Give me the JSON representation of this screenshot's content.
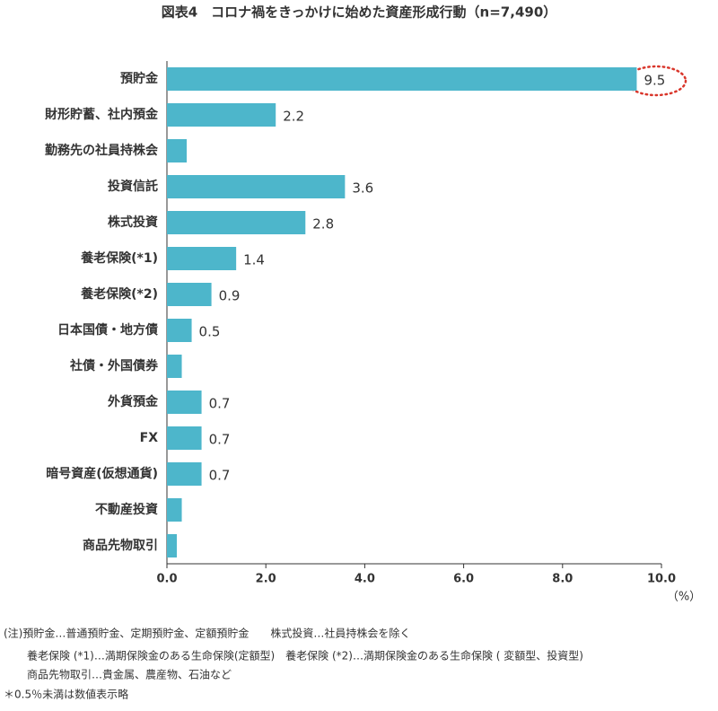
{
  "chart_data": {
    "type": "hbar",
    "title": "図表4　コロナ禍をきっかけに始めた資産形成行動（n=7,490）",
    "categories": [
      "預貯金",
      "財形貯蓄、社内預金",
      "勤務先の社員持株会",
      "投資信託",
      "株式投資",
      "養老保険(*1)",
      "養老保険(*2)",
      "日本国債・地方債",
      "社債・外国債券",
      "外貨預金",
      "FX",
      "暗号資産(仮想通貨)",
      "不動産投資",
      "商品先物取引"
    ],
    "values": [
      9.5,
      2.2,
      0.4,
      3.6,
      2.8,
      1.4,
      0.9,
      0.5,
      0.3,
      0.7,
      0.7,
      0.7,
      0.3,
      0.2
    ],
    "value_labels": [
      "9.5",
      "2.2",
      null,
      "3.6",
      "2.8",
      "1.4",
      "0.9",
      "0.5",
      null,
      "0.7",
      "0.7",
      "0.7",
      null,
      null
    ],
    "color": "#4db6cb",
    "xlim": [
      0,
      10
    ],
    "xticks": [
      {
        "value": 0,
        "label": "0.0"
      },
      {
        "value": 2,
        "label": "2.0"
      },
      {
        "value": 4,
        "label": "4.0"
      },
      {
        "value": 6,
        "label": "6.0"
      },
      {
        "value": 8,
        "label": "8.0"
      },
      {
        "value": 10,
        "label": "10.0"
      }
    ],
    "x_unit": "（%）",
    "notes": [
      "(注)預貯金…普通預貯金、定期預貯金、定額預貯金　　株式投資…社員持株会を除く",
      "養老保険 (*1)…満期保険金のある生命保険(定額型)　養老保険 (*2)…満期保険金のある生命保険 ( 変額型、投資型)",
      "商品先物取引…貴金属、農産物、石油など",
      "＊0.5％未満は数値表示略"
    ]
  }
}
